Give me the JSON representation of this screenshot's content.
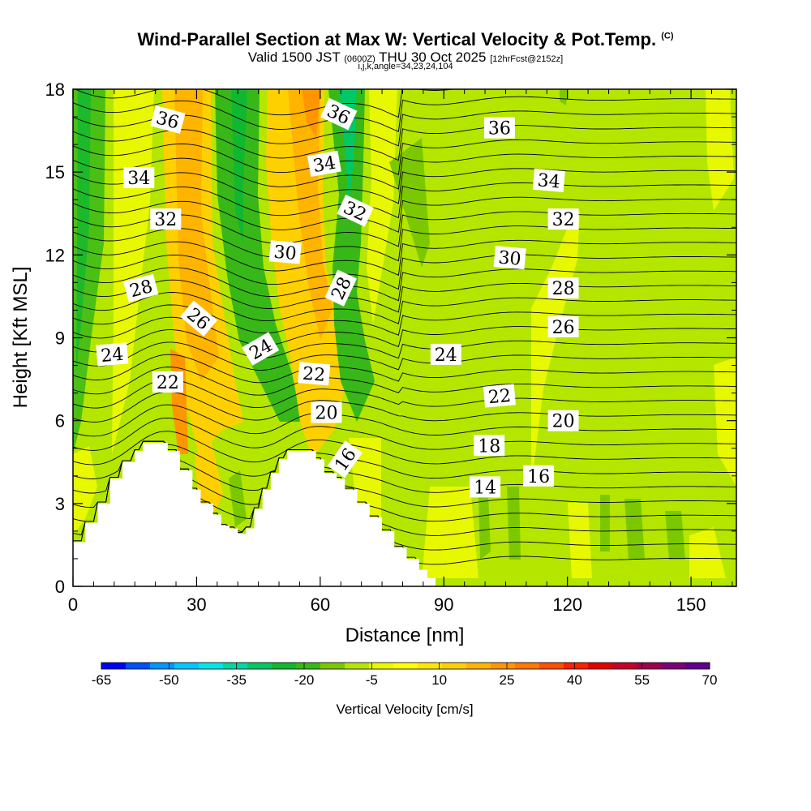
{
  "title": {
    "main": "Wind-Parallel Section at Max W: Vertical Velocity & Pot.Temp.",
    "copyright": "(C)",
    "valid_prefix": "Valid 1500 JST",
    "valid_utc": "(0600Z)",
    "valid_date": "THU 30 Oct 2025",
    "forecast": "[12hrFcst@2152z]",
    "indices": "i,j,k,angle=34,23,24,104"
  },
  "chart_data": {
    "type": "heatmap",
    "title": "Wind-Parallel Section at Max W: Vertical Velocity & Pot.Temp.",
    "xlabel": "Distance [nm]",
    "ylabel": "Height [Kft MSL]",
    "xlim": [
      0,
      161
    ],
    "ylim": [
      0,
      18
    ],
    "xticks": [
      0,
      30,
      60,
      90,
      120,
      150
    ],
    "yticks": [
      0,
      3,
      6,
      9,
      12,
      15,
      18
    ],
    "colorbar": {
      "label": "Vertical Velocity [cm/s]",
      "tick_labels": [
        "-65",
        "-50",
        "-35",
        "-20",
        "-5",
        "10",
        "25",
        "40",
        "55",
        "70"
      ],
      "colors": [
        "#0000ff",
        "#0050ff",
        "#0096ff",
        "#00c8ff",
        "#00e6e6",
        "#00d8a0",
        "#00c864",
        "#10b830",
        "#38b818",
        "#7cc800",
        "#b4e600",
        "#e8f800",
        "#ffff00",
        "#ffe600",
        "#ffd000",
        "#ffb400",
        "#ff9600",
        "#ff7800",
        "#ff5000",
        "#ff2000",
        "#e60000",
        "#c80028",
        "#a00050",
        "#800078",
        "#600090"
      ]
    },
    "terrain_kft": [
      [
        0,
        1.6
      ],
      [
        3,
        2.3
      ],
      [
        6,
        3.0
      ],
      [
        9,
        3.9
      ],
      [
        12,
        4.5
      ],
      [
        15,
        4.9
      ],
      [
        17,
        5.2
      ],
      [
        21,
        5.2
      ],
      [
        23,
        4.9
      ],
      [
        26,
        4.2
      ],
      [
        29,
        3.5
      ],
      [
        31,
        3.0
      ],
      [
        34,
        2.6
      ],
      [
        36,
        2.2
      ],
      [
        38,
        2.1
      ],
      [
        40,
        1.9
      ],
      [
        42,
        2.1
      ],
      [
        44,
        2.8
      ],
      [
        46,
        3.5
      ],
      [
        48,
        4.1
      ],
      [
        50,
        4.6
      ],
      [
        52,
        4.9
      ],
      [
        57,
        4.9
      ],
      [
        59,
        4.6
      ],
      [
        61,
        4.1
      ],
      [
        64,
        3.9
      ],
      [
        66,
        3.5
      ],
      [
        69,
        3.0
      ],
      [
        72,
        2.5
      ],
      [
        75,
        2.0
      ],
      [
        78,
        1.4
      ],
      [
        81,
        1.0
      ],
      [
        84,
        0.6
      ],
      [
        86,
        0.3
      ],
      [
        88,
        0
      ],
      [
        161,
        0
      ]
    ],
    "theta_contour_labels": [
      {
        "value": "36",
        "x": 23,
        "y": 16.9,
        "angle": 15
      },
      {
        "value": "36",
        "x": 64.5,
        "y": 17.1,
        "angle": 25
      },
      {
        "value": "36",
        "x": 103.5,
        "y": 16.6,
        "angle": 0
      },
      {
        "value": "34",
        "x": 16,
        "y": 14.8,
        "angle": 0
      },
      {
        "value": "34",
        "x": 61,
        "y": 15.3,
        "angle": -10
      },
      {
        "value": "34",
        "x": 115.5,
        "y": 14.7,
        "angle": 5
      },
      {
        "value": "32",
        "x": 22.5,
        "y": 13.3,
        "angle": 0
      },
      {
        "value": "32",
        "x": 68.5,
        "y": 13.6,
        "angle": 25
      },
      {
        "value": "32",
        "x": 119,
        "y": 13.3,
        "angle": 0
      },
      {
        "value": "30",
        "x": 51.5,
        "y": 12.1,
        "angle": 5
      },
      {
        "value": "30",
        "x": 106,
        "y": 11.9,
        "angle": 5
      },
      {
        "value": "28",
        "x": 16.5,
        "y": 10.8,
        "angle": -15
      },
      {
        "value": "28",
        "x": 65,
        "y": 10.8,
        "angle": -65
      },
      {
        "value": "28",
        "x": 119,
        "y": 10.8,
        "angle": 0
      },
      {
        "value": "26",
        "x": 30.5,
        "y": 9.7,
        "angle": 40
      },
      {
        "value": "26",
        "x": 119,
        "y": 9.4,
        "angle": 0
      },
      {
        "value": "24",
        "x": 9.5,
        "y": 8.4,
        "angle": -5
      },
      {
        "value": "24",
        "x": 45.5,
        "y": 8.6,
        "angle": -30
      },
      {
        "value": "24",
        "x": 90.5,
        "y": 8.4,
        "angle": 0
      },
      {
        "value": "22",
        "x": 23,
        "y": 7.4,
        "angle": 0
      },
      {
        "value": "22",
        "x": 58.5,
        "y": 7.7,
        "angle": 5
      },
      {
        "value": "22",
        "x": 103.5,
        "y": 6.9,
        "angle": -5
      },
      {
        "value": "20",
        "x": 61.5,
        "y": 6.3,
        "angle": 0
      },
      {
        "value": "20",
        "x": 119,
        "y": 6.0,
        "angle": 0
      },
      {
        "value": "18",
        "x": 101,
        "y": 5.1,
        "angle": 0
      },
      {
        "value": "16",
        "x": 66,
        "y": 4.6,
        "angle": -55
      },
      {
        "value": "16",
        "x": 113,
        "y": 4.0,
        "angle": 0
      },
      {
        "value": "14",
        "x": 100,
        "y": 3.6,
        "angle": 0
      }
    ],
    "theta_levels_K_offset": [
      14,
      16,
      18,
      20,
      22,
      24,
      26,
      28,
      30,
      32,
      34,
      36
    ]
  }
}
